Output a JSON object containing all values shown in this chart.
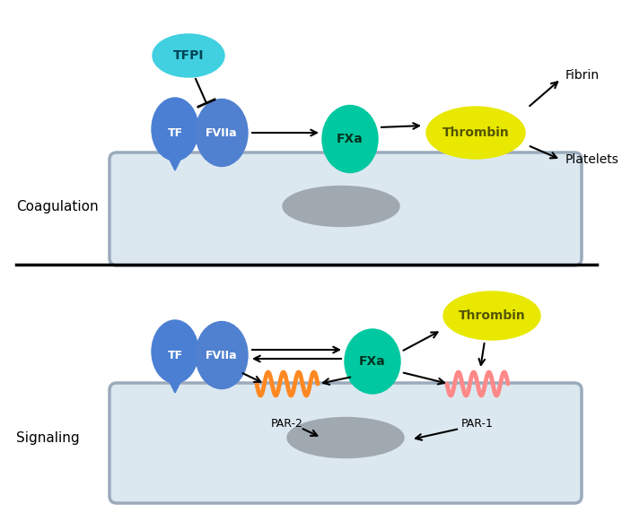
{
  "bg_color": "#ffffff",
  "cell_color": "#dce8f0",
  "cell_border_color": "#9aaabb",
  "nucleus_color": "#a0a8b0",
  "nucleus_border": "#888890",
  "TF_color": "#4a7fd4",
  "FVIIa_color": "#5080d0",
  "TFPI_color": "#40d0e0",
  "FXa_color": "#00c8a0",
  "Thrombin_color": "#e8e800",
  "PAR2_color": "#ff8822",
  "PAR1_color": "#ff8888",
  "coag_label": "Coagulation",
  "sig_label": "Signaling",
  "fibrin_label": "Fibrin",
  "platelets_label": "Platelets",
  "par2_label": "PAR-2",
  "par1_label": "PAR-1",
  "tfpi_label": "TFPI",
  "tf_label": "TF",
  "fviia_label": "FVIIa",
  "fxa_label": "FXa",
  "thrombin_label": "Thrombin"
}
